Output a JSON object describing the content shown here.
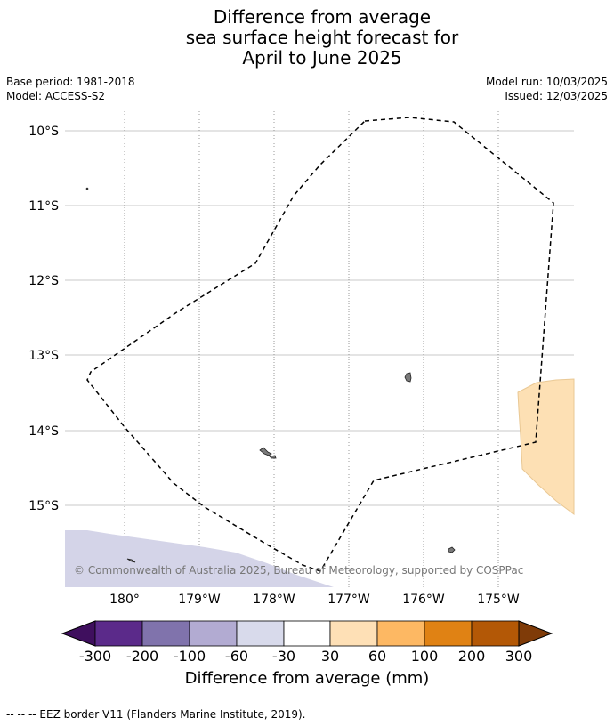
{
  "title_lines": [
    "Difference from average",
    "sea surface height forecast for",
    "April to June 2025"
  ],
  "base_period": "Base period: 1981-2018",
  "model": "Model: ACCESS-S2",
  "model_run": "Model run: 10/03/2025",
  "issued": "Issued: 12/03/2025",
  "map": {
    "lat_labels": [
      "10°S",
      "11°S",
      "12°S",
      "13°S",
      "14°S",
      "15°S"
    ],
    "lon_labels": [
      "180°",
      "179°W",
      "178°W",
      "177°W",
      "176°W",
      "175°W"
    ],
    "copyright": "© Commonwealth of Australia 2025, Bureau of Meteorology, supported by COSPPac",
    "region_colors": {
      "negative_light": "#d4d4e8",
      "positive_light": "#fde0b4",
      "land": "#7a7a7a"
    }
  },
  "colorbar": {
    "ticks": [
      "-300",
      "-200",
      "-100",
      "-60",
      "-30",
      "30",
      "60",
      "100",
      "200",
      "300"
    ],
    "colors": [
      "#3f0f5e",
      "#5b2a8a",
      "#8073ac",
      "#b2abd2",
      "#d8daeb",
      "#ffffff",
      "#fee0b6",
      "#fdb863",
      "#e08214",
      "#b35806",
      "#7f3b08"
    ],
    "label": "Difference from average (mm)"
  },
  "footer": "--  --  -- EEZ border V11 (Flanders Marine Institute, 2019)."
}
